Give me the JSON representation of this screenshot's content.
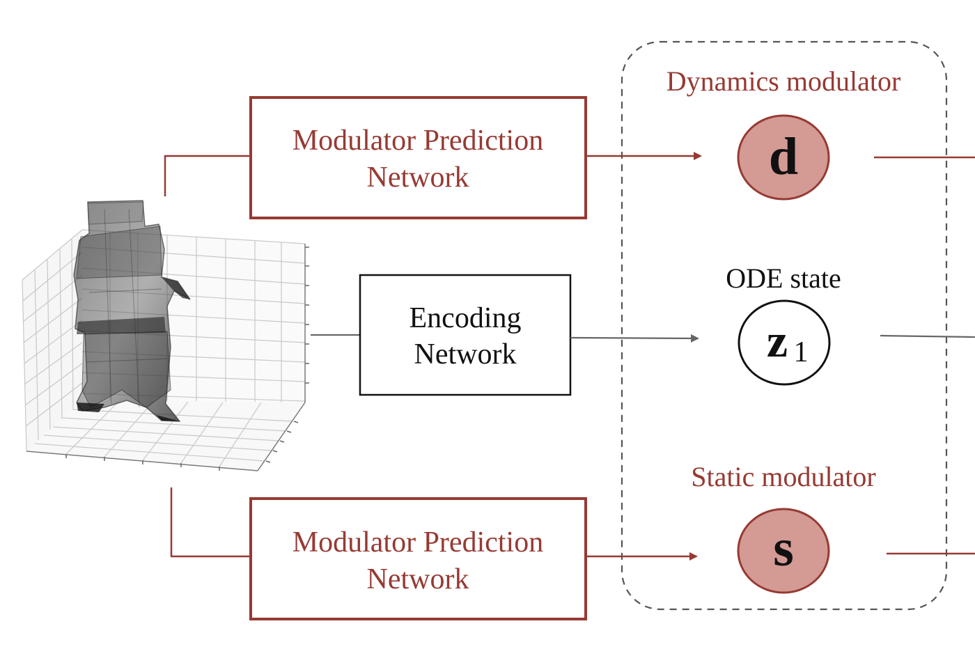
{
  "dynamics_label": "Dynamics modulator",
  "ode_label": "ODE state",
  "static_label": "Static modulator",
  "top_box": {
    "line1": "Modulator Prediction",
    "line2": "Network"
  },
  "mid_box": {
    "line1": "Encoding",
    "line2": "Network"
  },
  "bottom_box": {
    "line1": "Modulator Prediction",
    "line2": "Network"
  },
  "nodes": {
    "d": "d",
    "z_base": "z",
    "z_sub": "1",
    "s": "s"
  },
  "colors": {
    "accent_red": "#963a33",
    "node_fill": "#d49a94",
    "gray_arrow": "#666666"
  }
}
